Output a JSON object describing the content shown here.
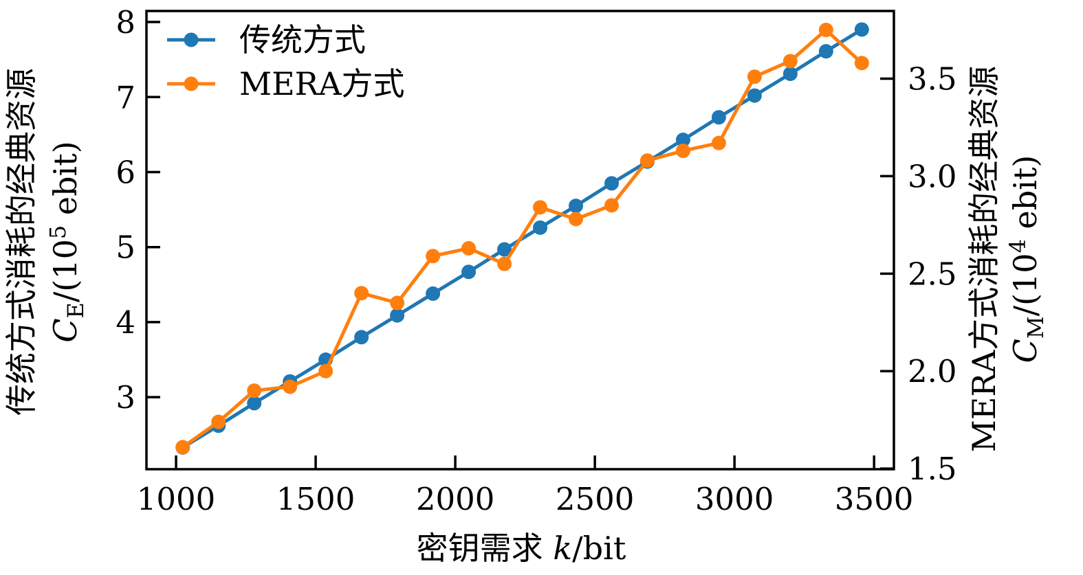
{
  "chart_data": {
    "type": "line",
    "title": "",
    "grid": false,
    "xlabel": {
      "prefix": "密钥需求 ",
      "var": "k",
      "suffix": "/bit"
    },
    "x_ticks": [
      1000,
      1500,
      2000,
      2500,
      3000,
      3500
    ],
    "xlim": [
      894,
      3571
    ],
    "left_axis": {
      "label_line1": "传统方式消耗的经典资源",
      "label_math": {
        "var": "C",
        "sub": "E",
        "mid": "/(10",
        "sup": "5",
        "end": " ebit)"
      },
      "ticks": [
        3,
        4,
        5,
        6,
        7,
        8
      ],
      "lim": [
        2.04,
        8.147
      ]
    },
    "right_axis": {
      "label_line1": "MERA方式消耗的经典资源",
      "label_math": {
        "var": "C",
        "sub": "M",
        "mid": "/(10",
        "sup": "4",
        "end": " ebit)"
      },
      "ticks": [
        1.5,
        2.0,
        2.5,
        3.0,
        3.5
      ],
      "lim": [
        1.497,
        3.847
      ]
    },
    "x": [
      1024,
      1152,
      1280,
      1408,
      1536,
      1664,
      1792,
      1920,
      2048,
      2176,
      2304,
      2432,
      2560,
      2688,
      2816,
      2944,
      3072,
      3200,
      3328,
      3456
    ],
    "series": [
      {
        "name": "传统方式",
        "axis": "left",
        "color": "#1f77b4",
        "values": [
          2.33,
          2.62,
          2.92,
          3.21,
          3.5,
          3.8,
          4.09,
          4.38,
          4.67,
          4.97,
          5.26,
          5.55,
          5.85,
          6.14,
          6.43,
          6.73,
          7.02,
          7.31,
          7.61,
          7.9
        ]
      },
      {
        "name": "MERA方式",
        "axis": "right",
        "color": "#ff7f0e",
        "values": [
          1.61,
          1.74,
          1.9,
          1.92,
          2.0,
          2.4,
          2.35,
          2.59,
          2.63,
          2.55,
          2.84,
          2.78,
          2.85,
          3.08,
          3.13,
          3.17,
          3.51,
          3.59,
          3.75,
          3.58
        ]
      }
    ],
    "legend": {
      "position": "top-left",
      "entries": [
        {
          "label": "传统方式",
          "color": "#1f77b4"
        },
        {
          "label": "MERA方式",
          "color": "#ff7f0e"
        }
      ]
    }
  }
}
